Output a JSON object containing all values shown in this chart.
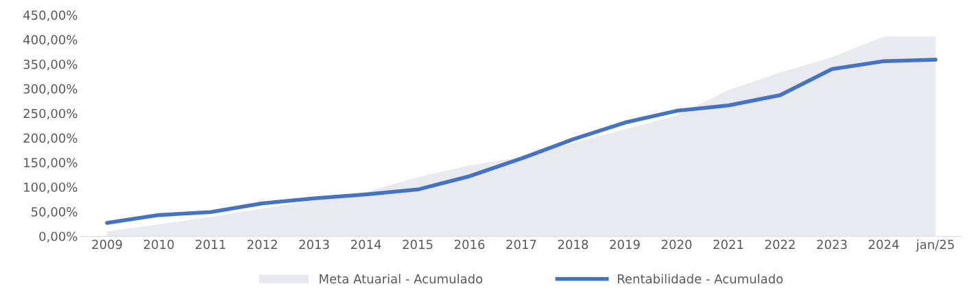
{
  "chart_data": {
    "type": "line",
    "categories": [
      "2009",
      "2010",
      "2011",
      "2012",
      "2013",
      "2014",
      "2015",
      "2016",
      "2017",
      "2018",
      "2019",
      "2020",
      "2021",
      "2022",
      "2023",
      "2024",
      "jan/25"
    ],
    "series": [
      {
        "name": "Meta Atuarial - Acumulado",
        "type": "area",
        "color": "#e8eaf0",
        "values": [
          10,
          24,
          39,
          56,
          73,
          90,
          120,
          144,
          161,
          190,
          217,
          245,
          297,
          333,
          364,
          406,
          406
        ]
      },
      {
        "name": "Rentabilidade - Acumulado",
        "color": "#4472c4",
        "values": [
          27,
          43,
          49,
          67,
          77,
          85,
          95,
          122,
          158,
          197,
          231,
          255,
          266,
          287,
          340,
          356,
          359
        ]
      }
    ],
    "ylim": [
      0,
      450
    ],
    "yticks": [
      {
        "value": 0,
        "label": "0,00%"
      },
      {
        "value": 50,
        "label": "50,00%"
      },
      {
        "value": 100,
        "label": "100,00%"
      },
      {
        "value": 150,
        "label": "150,00%"
      },
      {
        "value": 200,
        "label": "200,00%"
      },
      {
        "value": 250,
        "label": "250,00%"
      },
      {
        "value": 300,
        "label": "300,00%"
      },
      {
        "value": 350,
        "label": "350,00%"
      },
      {
        "value": 400,
        "label": "400,00%"
      },
      {
        "value": 450,
        "label": "450,00%"
      }
    ],
    "grid": false,
    "legend": "bottom",
    "marker": "none",
    "line_style": "solid"
  }
}
